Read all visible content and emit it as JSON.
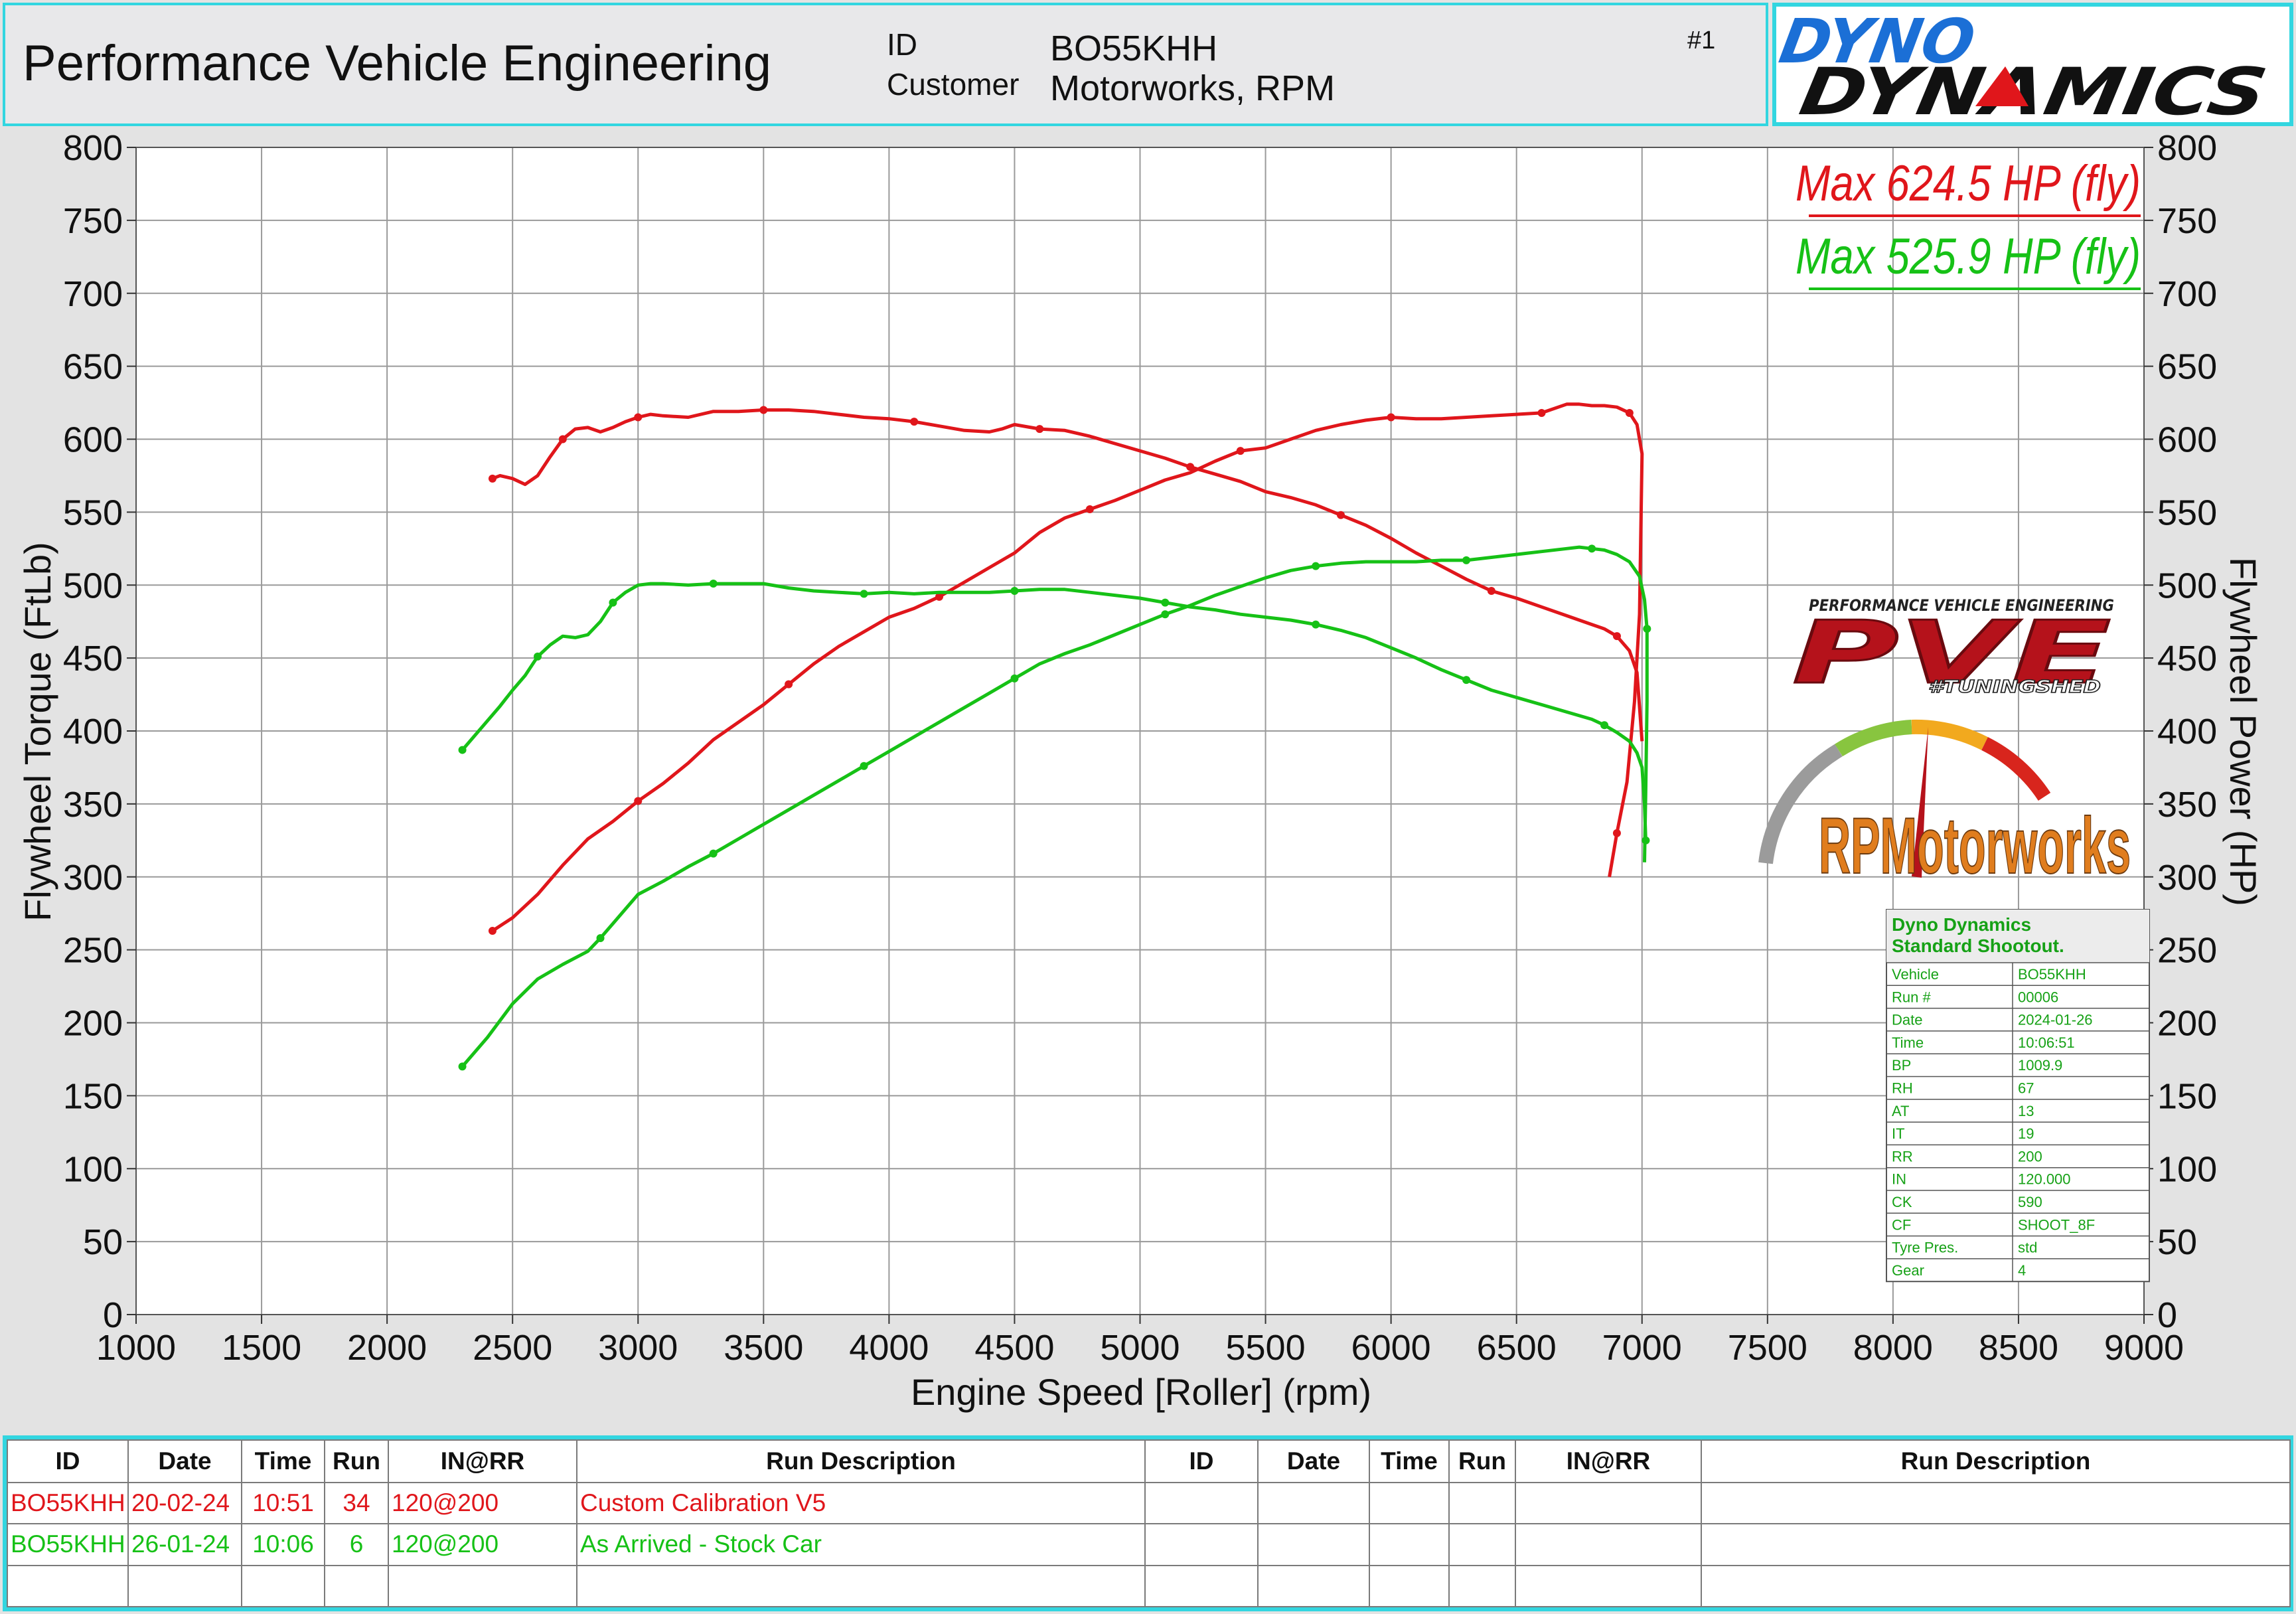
{
  "header": {
    "title": "Performance Vehicle Engineering",
    "id_label": "ID",
    "id_value": "BO55KHH",
    "customer_label": "Customer",
    "customer_value": "Motorworks, RPM",
    "page_number": "#1",
    "brand_line1": "DYNO",
    "brand_line2": "DYNAMICS"
  },
  "logos": {
    "pve_top": "PERFORMANCE VEHICLE ENGINEERING",
    "pve_main": "PVE",
    "pve_sub": "#TUNINGSHED",
    "rpm_text": "RPMotorworks"
  },
  "colors": {
    "run1": "#e0161b",
    "run2": "#16c116",
    "accent": "#32d6e0"
  },
  "chart_data": {
    "type": "line",
    "xlabel": "Engine Speed [Roller] (rpm)",
    "ylabel_left": "Flywheel Torque (FtLb)",
    "ylabel_right": "Flywheel Power (HP)",
    "xlim": [
      1000,
      9000
    ],
    "ylim": [
      0,
      800
    ],
    "x_ticks": [
      1000,
      1500,
      2000,
      2500,
      3000,
      3500,
      4000,
      4500,
      5000,
      5500,
      6000,
      6500,
      7000,
      7500,
      8000,
      8500,
      9000
    ],
    "y_ticks": [
      0,
      50,
      100,
      150,
      200,
      250,
      300,
      350,
      400,
      450,
      500,
      550,
      600,
      650,
      700,
      750,
      800
    ],
    "grid": true,
    "annotations": [
      {
        "text": "Max 624.5 HP (fly)",
        "color": "#e0161b"
      },
      {
        "text": "Max 525.9 HP (fly)",
        "color": "#16c116"
      }
    ],
    "series": [
      {
        "run": 1,
        "color": "#e0161b",
        "axis": "torque",
        "x": [
          2420,
          2450,
          2500,
          2550,
          2600,
          2650,
          2700,
          2750,
          2800,
          2850,
          2900,
          2950,
          3000,
          3050,
          3100,
          3200,
          3300,
          3400,
          3500,
          3600,
          3700,
          3800,
          3900,
          4000,
          4100,
          4200,
          4300,
          4400,
          4450,
          4500,
          4600,
          4700,
          4800,
          4900,
          5000,
          5100,
          5200,
          5300,
          5400,
          5500,
          5600,
          5700,
          5800,
          5900,
          6000,
          6100,
          6200,
          6300,
          6400,
          6500,
          6600,
          6700,
          6800,
          6850,
          6900,
          6950,
          6980,
          7000
        ],
        "y": [
          573,
          575,
          573,
          569,
          575,
          588,
          600,
          607,
          608,
          605,
          608,
          612,
          615,
          617,
          616,
          615,
          619,
          619,
          620,
          620,
          619,
          617,
          615,
          614,
          612,
          609,
          606,
          605,
          607,
          610,
          607,
          606,
          602,
          597,
          592,
          587,
          581,
          576,
          571,
          564,
          560,
          555,
          548,
          541,
          532,
          522,
          513,
          504,
          496,
          491,
          485,
          479,
          473,
          470,
          465,
          455,
          440,
          393
        ]
      },
      {
        "run": 1,
        "color": "#e0161b",
        "axis": "power",
        "x": [
          2420,
          2500,
          2600,
          2700,
          2800,
          2900,
          3000,
          3100,
          3200,
          3300,
          3400,
          3500,
          3600,
          3700,
          3800,
          3900,
          4000,
          4100,
          4200,
          4300,
          4400,
          4500,
          4600,
          4700,
          4800,
          4900,
          5000,
          5100,
          5200,
          5300,
          5400,
          5500,
          5600,
          5700,
          5800,
          5900,
          6000,
          6100,
          6200,
          6300,
          6400,
          6500,
          6600,
          6700,
          6750,
          6800,
          6850,
          6900,
          6950,
          6980,
          7000,
          6990,
          6970,
          6940,
          6900,
          6870
        ],
        "y": [
          263,
          272,
          288,
          308,
          326,
          338,
          352,
          364,
          378,
          394,
          406,
          418,
          432,
          446,
          458,
          468,
          478,
          484,
          492,
          502,
          512,
          522,
          536,
          546,
          552,
          558,
          565,
          572,
          577,
          585,
          592,
          594,
          600,
          606,
          610,
          613,
          615,
          614,
          614,
          615,
          616,
          617,
          618,
          624,
          624,
          623,
          623,
          622,
          618,
          610,
          590,
          480,
          420,
          365,
          330,
          300
        ]
      },
      {
        "run": 2,
        "color": "#16c116",
        "axis": "torque",
        "x": [
          2300,
          2350,
          2400,
          2450,
          2500,
          2550,
          2600,
          2650,
          2700,
          2750,
          2800,
          2850,
          2900,
          2950,
          3000,
          3050,
          3100,
          3200,
          3300,
          3400,
          3500,
          3600,
          3700,
          3800,
          3900,
          4000,
          4100,
          4200,
          4300,
          4400,
          4500,
          4600,
          4700,
          4800,
          4900,
          5000,
          5100,
          5200,
          5300,
          5400,
          5500,
          5600,
          5700,
          5800,
          5900,
          6000,
          6100,
          6200,
          6300,
          6400,
          6500,
          6600,
          6700,
          6800,
          6850,
          6900,
          6950,
          6980,
          7000,
          7010,
          7015
        ],
        "y": [
          387,
          397,
          407,
          417,
          428,
          438,
          451,
          459,
          465,
          464,
          466,
          475,
          488,
          495,
          500,
          501,
          501,
          500,
          501,
          501,
          501,
          498,
          496,
          495,
          494,
          495,
          494,
          495,
          495,
          495,
          496,
          497,
          497,
          495,
          493,
          491,
          488,
          485,
          483,
          480,
          478,
          476,
          473,
          469,
          464,
          457,
          450,
          442,
          435,
          428,
          423,
          418,
          413,
          408,
          404,
          399,
          393,
          385,
          375,
          350,
          325
        ]
      },
      {
        "run": 2,
        "color": "#16c116",
        "axis": "power",
        "x": [
          2300,
          2400,
          2500,
          2600,
          2700,
          2800,
          2850,
          2900,
          2950,
          3000,
          3100,
          3200,
          3300,
          3400,
          3500,
          3600,
          3700,
          3800,
          3900,
          4000,
          4100,
          4200,
          4300,
          4400,
          4500,
          4600,
          4700,
          4800,
          4900,
          5000,
          5100,
          5200,
          5300,
          5400,
          5500,
          5600,
          5700,
          5800,
          5900,
          6000,
          6100,
          6200,
          6300,
          6400,
          6500,
          6600,
          6700,
          6750,
          6800,
          6850,
          6900,
          6950,
          6990,
          7010,
          7020,
          7020,
          7015,
          7010
        ],
        "y": [
          170,
          190,
          213,
          230,
          240,
          249,
          258,
          268,
          278,
          288,
          297,
          307,
          316,
          326,
          336,
          346,
          356,
          366,
          376,
          386,
          396,
          406,
          416,
          426,
          436,
          446,
          453,
          459,
          466,
          473,
          480,
          486,
          493,
          499,
          505,
          510,
          513,
          515,
          516,
          516,
          516,
          517,
          517,
          519,
          521,
          523,
          525,
          526,
          525,
          524,
          521,
          516,
          506,
          490,
          470,
          420,
          360,
          310
        ]
      }
    ]
  },
  "shootout": {
    "title1": "Dyno Dynamics",
    "title2": "Standard Shootout.",
    "rows": [
      {
        "k": "Vehicle",
        "v": "BO55KHH"
      },
      {
        "k": "Run #",
        "v": "00006"
      },
      {
        "k": "Date",
        "v": "2024-01-26"
      },
      {
        "k": "Time",
        "v": "10:06:51"
      },
      {
        "k": "BP",
        "v": "1009.9"
      },
      {
        "k": "RH",
        "v": "67"
      },
      {
        "k": "AT",
        "v": "13"
      },
      {
        "k": "IT",
        "v": "19"
      },
      {
        "k": "RR",
        "v": "200"
      },
      {
        "k": "IN",
        "v": "120.000"
      },
      {
        "k": "CK",
        "v": "590"
      },
      {
        "k": "CF",
        "v": "SHOOT_8F"
      },
      {
        "k": "Tyre Pres.",
        "v": "std"
      },
      {
        "k": "Gear",
        "v": "4"
      }
    ]
  },
  "run_table": {
    "headers": [
      "ID",
      "Date",
      "Time",
      "Run",
      "IN@RR",
      "Run Description",
      "ID",
      "Date",
      "Time",
      "Run",
      "IN@RR",
      "Run Description"
    ],
    "rows": [
      {
        "id": "BO55KHH",
        "date": "20-02-24",
        "time": "10:51",
        "run": "34",
        "inrr": "120@200",
        "desc": "Custom Calibration V5"
      },
      {
        "id": "BO55KHH",
        "date": "26-01-24",
        "time": "10:06",
        "run": "6",
        "inrr": "120@200",
        "desc": "As Arrived - Stock Car"
      }
    ]
  }
}
